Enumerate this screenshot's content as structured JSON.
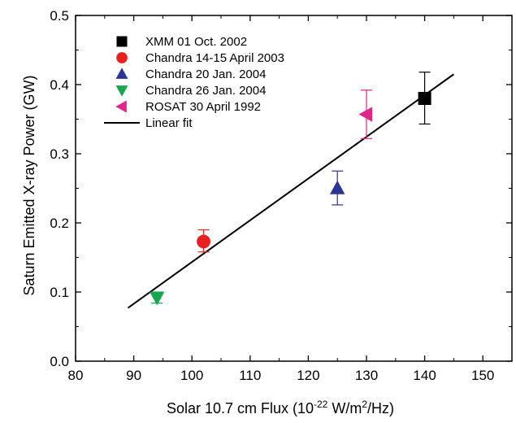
{
  "chart_data": {
    "type": "scatter",
    "title": "",
    "xlabel": {
      "prefix": "Solar 10.7 cm Flux (10",
      "sup1": "-22",
      "mid": " W/m",
      "sup2": "2",
      "suffix": "/Hz)"
    },
    "ylabel": "Saturn Emitted X-ray Power (GW)",
    "xlim": [
      80,
      155
    ],
    "ylim": [
      0.0,
      0.5
    ],
    "xticks": [
      80,
      90,
      100,
      110,
      120,
      130,
      140,
      150
    ],
    "yticks": [
      0.0,
      0.1,
      0.2,
      0.3,
      0.4,
      0.5
    ],
    "grid": false,
    "legend_position": "top-left",
    "series": [
      {
        "name": "XMM 01 Oct. 2002",
        "marker": "square",
        "color": "#000000",
        "x": 140,
        "y": 0.38,
        "err_low": 0.343,
        "err_high": 0.418
      },
      {
        "name": "Chandra 14-15  April 2003",
        "marker": "circle",
        "color": "#e8211e",
        "x": 102,
        "y": 0.173,
        "err_low": 0.158,
        "err_high": 0.19
      },
      {
        "name": "Chandra 20 Jan. 2004",
        "marker": "triangle-up",
        "color": "#2b3595",
        "x": 125,
        "y": 0.25,
        "err_low": 0.226,
        "err_high": 0.275
      },
      {
        "name": "Chandra 26 Jan. 2004",
        "marker": "triangle-down",
        "color": "#17a650",
        "x": 94,
        "y": 0.092,
        "err_low": 0.084,
        "err_high": 0.1
      },
      {
        "name": "ROSAT 30 April 1992",
        "marker": "triangle-left",
        "color": "#e4238c",
        "x": 130,
        "y": 0.357,
        "err_low": 0.322,
        "err_high": 0.392
      }
    ],
    "fit": {
      "name": "Linear fit",
      "color": "#000000",
      "x": [
        89,
        145
      ],
      "y": [
        0.077,
        0.415
      ]
    }
  }
}
